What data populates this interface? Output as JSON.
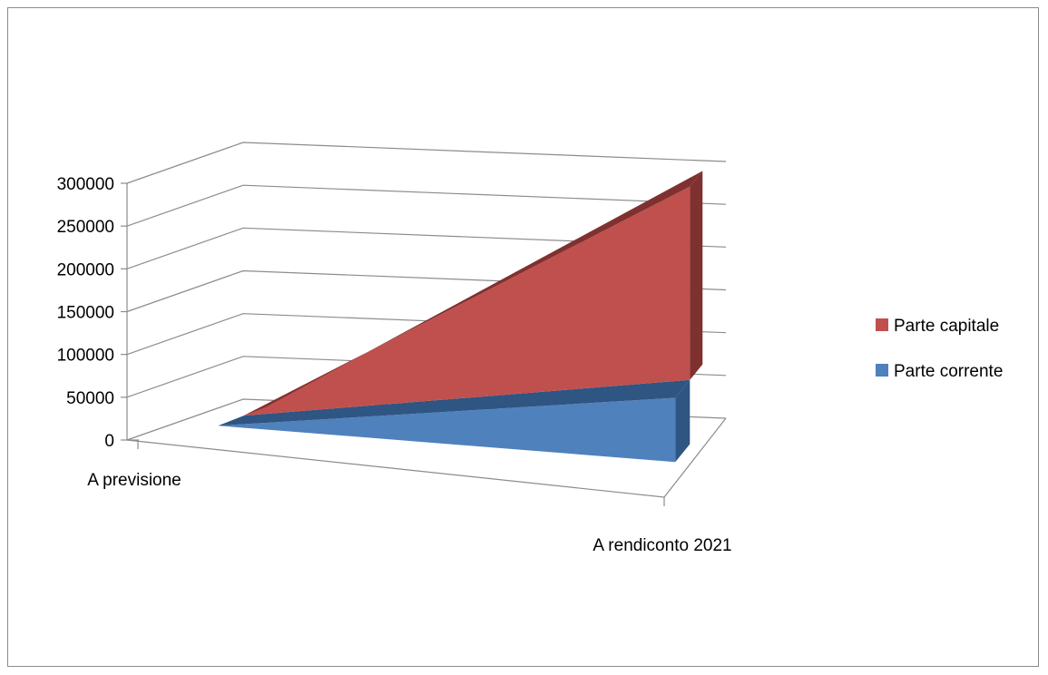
{
  "chart_data": {
    "type": "area",
    "projection": "3d",
    "categories": [
      "A previsione",
      "A rendiconto 2021"
    ],
    "y_ticks": [
      "0",
      "50000",
      "100000",
      "150000",
      "200000",
      "250000",
      "300000"
    ],
    "ylim": [
      0,
      300000
    ],
    "grid": true,
    "stacked": true,
    "legend_position": "right",
    "series": [
      {
        "name": "Parte capitale",
        "values": [
          0,
          226000
        ],
        "color": "#C0504D",
        "side_color": "#7F3130"
      },
      {
        "name": "Parte corrente",
        "values": [
          0,
          75000
        ],
        "color": "#4F81BD",
        "side_color": "#2F5582"
      }
    ]
  }
}
